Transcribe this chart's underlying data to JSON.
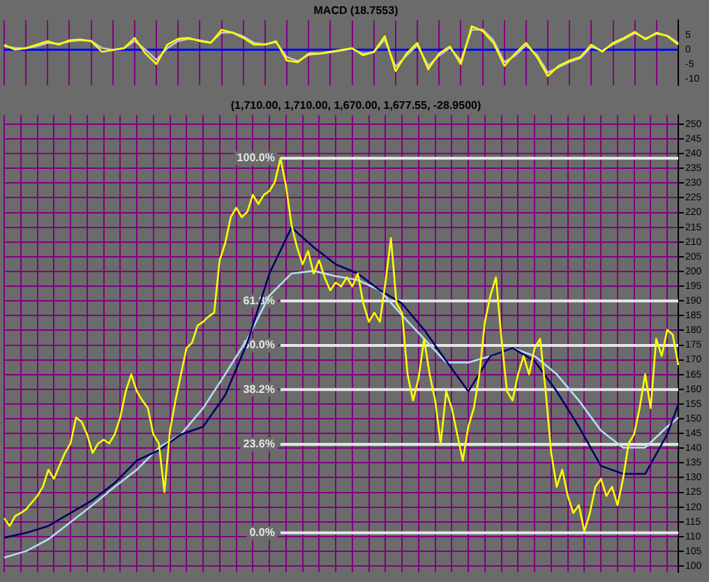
{
  "chart_data": [
    {
      "type": "line",
      "title": "MACD (18.7553)",
      "categories": [
        null,
        null,
        null,
        null,
        null,
        null,
        null,
        null,
        null,
        null,
        null,
        null,
        null,
        null,
        null,
        null,
        null,
        null,
        null,
        null,
        null,
        null,
        null,
        null,
        null,
        null,
        null,
        null,
        null,
        null,
        null,
        null,
        null,
        null,
        null,
        null,
        null,
        null,
        null,
        null,
        null,
        null,
        null,
        null,
        null,
        null,
        null,
        null,
        null,
        null,
        null,
        null,
        null,
        null,
        null,
        null,
        null,
        null,
        null,
        null,
        null,
        null,
        null
      ],
      "series": [
        {
          "color": "#ffff00",
          "values": [
            1.7,
            0,
            0.5,
            1.7,
            2.9,
            1.7,
            3.2,
            3.5,
            2.9,
            -0.7,
            -0.1,
            0.5,
            4.0,
            -1.3,
            -4.9,
            1.7,
            3.7,
            4.0,
            2.9,
            2.3,
            6.8,
            5.8,
            4.0,
            1.7,
            1.7,
            2.9,
            -3.7,
            -4.3,
            -1.3,
            -1.3,
            -0.7,
            -0.1,
            0.5,
            -1.9,
            -0.7,
            4.6,
            -7.3,
            -1.3,
            2.3,
            -6.7,
            -1.3,
            1.1,
            -4.9,
            8.0,
            6.4,
            2.3,
            -5.5,
            -1.3,
            2.3,
            -2.5,
            -9.0,
            -5.5,
            -3.7,
            -2.5,
            1.7,
            -0.7,
            2.3,
            4.0,
            6.1,
            3.5,
            5.8,
            4.6,
            1.7
          ]
        },
        {
          "color": "#c8c8c8",
          "values": [
            1.2,
            0.6,
            0.5,
            1.2,
            2.3,
            2.0,
            2.8,
            3.2,
            3.0,
            0.5,
            0.0,
            0.4,
            3.0,
            0.0,
            -3.5,
            0.5,
            3.0,
            3.7,
            3.2,
            2.5,
            5.8,
            5.9,
            4.5,
            2.3,
            1.8,
            2.6,
            -2.5,
            -3.9,
            -1.8,
            -1.4,
            -0.9,
            -0.3,
            0.3,
            -1.4,
            -0.9,
            3.5,
            -5.8,
            -2.0,
            1.5,
            -5.5,
            -2.0,
            0.6,
            -3.8,
            6.8,
            6.9,
            3.2,
            -4.2,
            -2.0,
            1.5,
            -1.8,
            -7.8,
            -6.0,
            -4.2,
            -2.9,
            1.0,
            -0.3,
            1.8,
            3.6,
            5.6,
            3.9,
            5.4,
            4.8,
            2.3
          ]
        }
      ],
      "ylim": [
        -12,
        10
      ],
      "yticks": [
        5,
        0,
        -5,
        -10
      ],
      "grid": "x",
      "legend": false,
      "marker": "none",
      "ref_lines": [
        {
          "axis": "y",
          "value": 0,
          "color": "#0000ff"
        }
      ]
    },
    {
      "type": "line",
      "title": "(1,710.00, 1,710.00, 1,670.00, 1,677.55, -28.9500)",
      "categories": [
        null,
        null,
        null,
        null,
        null,
        null,
        null,
        null,
        null,
        null,
        null,
        null,
        null,
        null,
        null,
        null,
        null,
        null,
        null,
        null,
        null,
        null,
        null,
        null,
        null,
        null,
        null,
        null,
        null,
        null,
        null,
        null,
        null,
        null,
        null,
        null,
        null,
        null,
        null,
        null,
        null,
        null,
        null,
        null,
        null,
        null,
        null,
        null,
        null,
        null,
        null,
        null,
        null,
        null,
        null,
        null,
        null,
        null,
        null,
        null,
        null,
        null,
        null,
        null,
        null,
        null,
        null,
        null,
        null,
        null,
        null,
        null,
        null,
        null,
        null,
        null,
        null,
        null,
        null,
        null,
        null,
        null,
        null,
        null,
        null,
        null,
        null,
        null,
        null,
        null,
        null,
        null,
        null,
        null,
        null,
        null,
        null,
        null,
        null,
        null,
        null,
        null,
        null,
        null,
        null,
        null,
        null,
        null,
        null,
        null,
        null,
        null,
        null,
        null,
        null,
        null,
        null,
        null,
        null,
        null,
        null,
        null,
        null
      ],
      "series": [
        {
          "color": "#ffff00",
          "values": [
            116.2,
            113.6,
            117,
            118,
            119.3,
            121.6,
            123.8,
            126.9,
            132.7,
            129.6,
            134,
            138.4,
            141.6,
            150.4,
            149,
            144.7,
            138.4,
            141.6,
            142.9,
            141.6,
            144.7,
            150.4,
            159.3,
            165.1,
            159.3,
            156.2,
            153.6,
            144.7,
            141.6,
            125.1,
            146,
            156.2,
            165.1,
            174,
            175.8,
            181.6,
            182.9,
            184.7,
            186,
            203.8,
            209.6,
            218.4,
            221.6,
            218.4,
            220.2,
            226,
            222.9,
            226,
            227.3,
            230.4,
            238.4,
            229.1,
            215.8,
            208.2,
            202.4,
            206.9,
            199.3,
            203.8,
            198,
            193.6,
            196.2,
            194.9,
            198,
            194.9,
            199.3,
            189.1,
            182.9,
            186,
            182.9,
            196.2,
            211.3,
            189.1,
            186,
            165.1,
            156.2,
            163.8,
            177.1,
            165.1,
            156.2,
            141.6,
            159.3,
            153.6,
            144.7,
            135.8,
            147.3,
            153.6,
            165.1,
            182.9,
            191.8,
            198,
            177.1,
            159.3,
            156.2,
            165.1,
            171.3,
            165.1,
            174,
            177.1,
            159.3,
            138.4,
            126.9,
            132.7,
            123.8,
            118,
            120.7,
            111.8,
            118,
            126.9,
            129.6,
            123.8,
            126.9,
            120.7,
            129.6,
            141.6,
            144.7,
            153.6,
            165.1,
            153.6,
            177.1,
            171.3,
            180.2,
            178.5,
            168.2
          ]
        },
        {
          "color": "#000066",
          "values": [
            109.6,
            null,
            null,
            null,
            111.3,
            null,
            null,
            null,
            113.6,
            null,
            null,
            null,
            118,
            null,
            null,
            null,
            122.4,
            null,
            null,
            null,
            128.2,
            null,
            null,
            null,
            135.8,
            null,
            null,
            null,
            139.3,
            null,
            null,
            null,
            144.7,
            null,
            null,
            null,
            147.3,
            null,
            null,
            null,
            158,
            null,
            null,
            null,
            175.8,
            null,
            null,
            null,
            199.3,
            null,
            null,
            null,
            214.9,
            null,
            null,
            null,
            208.2,
            null,
            null,
            null,
            202.4,
            null,
            null,
            null,
            199.3,
            null,
            null,
            null,
            193.6,
            null,
            null,
            null,
            189.1,
            null,
            null,
            null,
            180.2,
            null,
            null,
            null,
            169.6,
            null,
            null,
            null,
            159.3,
            null,
            null,
            null,
            171.3,
            null,
            null,
            null,
            174,
            null,
            null,
            null,
            169.6,
            null,
            null,
            null,
            159.3,
            null,
            null,
            null,
            147.3,
            null,
            null,
            null,
            134,
            null,
            null,
            null,
            131.3,
            null,
            null,
            null,
            131.3,
            null,
            null,
            null,
            144.7,
            null,
            154.9
          ]
        },
        {
          "color": "#b0e0f0",
          "values": [
            102.9,
            null,
            null,
            null,
            105.1,
            null,
            null,
            null,
            109.1,
            null,
            null,
            null,
            114.9,
            null,
            null,
            null,
            120.7,
            null,
            null,
            null,
            126.9,
            null,
            null,
            null,
            132.7,
            null,
            null,
            null,
            140.2,
            null,
            null,
            null,
            144.7,
            null,
            null,
            null,
            153.6,
            null,
            null,
            null,
            165.1,
            null,
            null,
            null,
            177.1,
            null,
            null,
            null,
            191.8,
            null,
            null,
            null,
            199.3,
            null,
            null,
            null,
            200.2,
            null,
            null,
            null,
            198.4,
            null,
            null,
            null,
            197.1,
            null,
            null,
            null,
            193.6,
            null,
            null,
            null,
            185.1,
            null,
            null,
            null,
            177.1,
            null,
            null,
            null,
            169.1,
            null,
            null,
            null,
            169.1,
            null,
            null,
            null,
            171.3,
            null,
            null,
            null,
            174,
            null,
            null,
            null,
            171.3,
            null,
            null,
            null,
            165.1,
            null,
            null,
            null,
            156.2,
            null,
            null,
            null,
            146,
            null,
            null,
            null,
            140.2,
            null,
            null,
            null,
            140.2,
            null,
            null,
            null,
            147.3,
            null,
            150.4
          ]
        }
      ],
      "ylim": [
        98,
        253
      ],
      "yticks": [
        100,
        105,
        110,
        115,
        120,
        125,
        130,
        135,
        140,
        145,
        150,
        155,
        160,
        165,
        170,
        175,
        180,
        185,
        190,
        195,
        200,
        205,
        210,
        215,
        220,
        225,
        230,
        235,
        240,
        245,
        250
      ],
      "grid": true,
      "legend": false,
      "marker": "none",
      "ref_lines": [
        {
          "axis": "y",
          "value": 238.4,
          "color": "#e8e8e8"
        },
        {
          "axis": "y",
          "value": 190,
          "color": "#e8e8e8"
        },
        {
          "axis": "y",
          "value": 174.9,
          "color": "#e8e8e8"
        },
        {
          "axis": "y",
          "value": 159.9,
          "color": "#e8e8e8"
        },
        {
          "axis": "y",
          "value": 141.3,
          "color": "#e8e8e8"
        },
        {
          "axis": "y",
          "value": 111.3,
          "color": "#e8e8e8"
        }
      ],
      "annotations": [
        {
          "text": "100.0%",
          "y": 238.4
        },
        {
          "text": "61.8%",
          "y": 190
        },
        {
          "text": "50.0%",
          "y": 174.9
        },
        {
          "text": "38.2%",
          "y": 159.9
        },
        {
          "text": "23.6%",
          "y": 141.3
        },
        {
          "text": "0.0%",
          "y": 111.3
        }
      ]
    }
  ]
}
